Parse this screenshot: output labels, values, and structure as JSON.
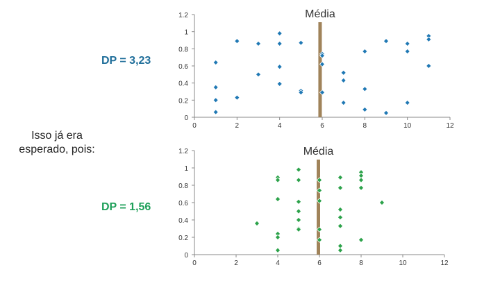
{
  "slide": {
    "left_text": "Isso já era esperado, pois:",
    "colors": {
      "top_marker": "#1f78b4",
      "bottom_marker": "#2ca24a",
      "mean_line": "#a0835a"
    }
  },
  "chart_data": [
    {
      "type": "scatter",
      "label": "DP = 3,23",
      "mean_label": "Média",
      "mean_x": 5.9,
      "xlim": [
        0,
        12
      ],
      "ylim": [
        0,
        1.2
      ],
      "x_ticks": [
        "0",
        "2",
        "4",
        "6",
        "8",
        "10",
        "12"
      ],
      "y_ticks": [
        "0",
        "0.2",
        "0.4",
        "0.6",
        "0.8",
        "1",
        "1.2"
      ],
      "points": [
        [
          1,
          0.64
        ],
        [
          1,
          0.35
        ],
        [
          1,
          0.2
        ],
        [
          1,
          0.06
        ],
        [
          2,
          0.89
        ],
        [
          2,
          0.23
        ],
        [
          3,
          0.86
        ],
        [
          3,
          0.5
        ],
        [
          4,
          0.98
        ],
        [
          4,
          0.86
        ],
        [
          4,
          0.59
        ],
        [
          4,
          0.39
        ],
        [
          5,
          0.87
        ],
        [
          5,
          0.31
        ],
        [
          5,
          0.29
        ],
        [
          6,
          0.74
        ],
        [
          6,
          0.72
        ],
        [
          6,
          0.62
        ],
        [
          6,
          0.29
        ],
        [
          7,
          0.52
        ],
        [
          7,
          0.43
        ],
        [
          7,
          0.17
        ],
        [
          8,
          0.77
        ],
        [
          8,
          0.33
        ],
        [
          8,
          0.09
        ],
        [
          9,
          0.89
        ],
        [
          9,
          0.05
        ],
        [
          10,
          0.86
        ],
        [
          10,
          0.77
        ],
        [
          10,
          0.17
        ],
        [
          11,
          0.95
        ],
        [
          11,
          0.91
        ],
        [
          11,
          0.6
        ]
      ]
    },
    {
      "type": "scatter",
      "label": "DP = 1,56",
      "mean_label": "Média",
      "mean_x": 5.95,
      "xlim": [
        0,
        12
      ],
      "ylim": [
        0,
        1.2
      ],
      "x_ticks": [
        "0",
        "2",
        "4",
        "6",
        "8",
        "10",
        "12"
      ],
      "y_ticks": [
        "0",
        "0.2",
        "0.4",
        "0.6",
        "0.8",
        "1",
        "1.2"
      ],
      "points": [
        [
          3,
          0.36
        ],
        [
          4,
          0.89
        ],
        [
          4,
          0.86
        ],
        [
          4,
          0.64
        ],
        [
          4,
          0.24
        ],
        [
          4,
          0.2
        ],
        [
          4,
          0.05
        ],
        [
          5,
          0.98
        ],
        [
          5,
          0.86
        ],
        [
          5,
          0.61
        ],
        [
          5,
          0.5
        ],
        [
          5,
          0.4
        ],
        [
          5,
          0.3
        ],
        [
          5,
          0.29
        ],
        [
          6,
          0.86
        ],
        [
          6,
          0.74
        ],
        [
          6,
          0.62
        ],
        [
          6,
          0.29
        ],
        [
          6,
          0.17
        ],
        [
          7,
          0.89
        ],
        [
          7,
          0.77
        ],
        [
          7,
          0.52
        ],
        [
          7,
          0.43
        ],
        [
          7,
          0.33
        ],
        [
          7,
          0.1
        ],
        [
          7,
          0.05
        ],
        [
          8,
          0.95
        ],
        [
          8,
          0.91
        ],
        [
          8,
          0.86
        ],
        [
          8,
          0.77
        ],
        [
          8,
          0.17
        ],
        [
          9,
          0.6
        ]
      ]
    }
  ]
}
